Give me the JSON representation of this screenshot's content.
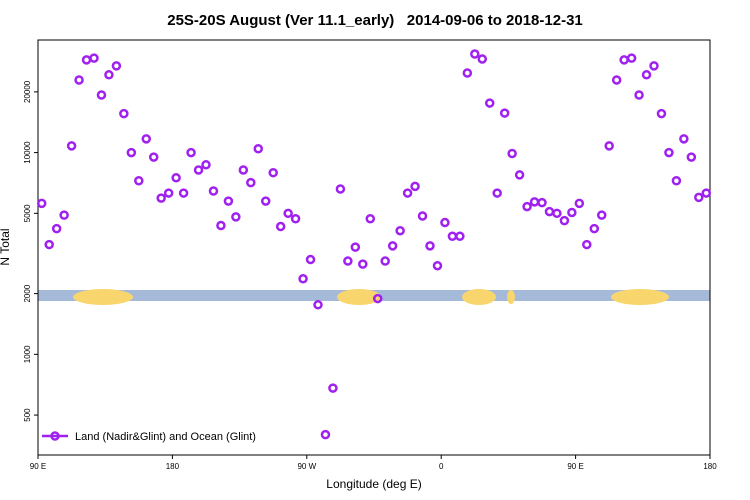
{
  "chart_data": {
    "type": "scatter",
    "title": "25S-20S August (Ver 11.1_early)   2014-09-06 to 2018-12-31",
    "x_label": "Longitude (deg E)",
    "y_label": "N Total",
    "log_y": true,
    "legend": "bottom-left",
    "xlim": [
      90,
      540
    ],
    "xticks": [
      {
        "value": 90,
        "label": "90 E"
      },
      {
        "value": 180,
        "label": "180"
      },
      {
        "value": 270,
        "label": "90 W"
      },
      {
        "value": 360,
        "label": "0"
      },
      {
        "value": 450,
        "label": "90 E"
      },
      {
        "value": 540,
        "label": "180"
      }
    ],
    "ylim": [
      317,
      36150
    ],
    "yticks": [
      500,
      1000,
      2000,
      5000,
      10000,
      20000
    ],
    "series": [
      {
        "name": "Land (Nadir&Glint) and Ocean (Glint)",
        "color": "#a020f0",
        "x": [
          92.5,
          97.5,
          102.5,
          107.5,
          112.5,
          117.5,
          122.5,
          127.5,
          132.5,
          137.5,
          142.5,
          147.5,
          152.5,
          157.5,
          162.5,
          167.5,
          172.5,
          177.5,
          182.5,
          187.5,
          192.5,
          197.5,
          202.5,
          207.5,
          212.5,
          217.5,
          222.5,
          227.5,
          232.5,
          237.5,
          242.5,
          247.5,
          252.5,
          257.5,
          262.5,
          267.5,
          272.5,
          277.5,
          282.5,
          287.5,
          292.5,
          297.5,
          302.5,
          307.5,
          312.5,
          317.5,
          322.5,
          327.5,
          332.5,
          337.5,
          342.5,
          347.5,
          352.5,
          357.5,
          362.5,
          367.5,
          372.5,
          377.5,
          382.5,
          387.5,
          392.5,
          397.5,
          402.5,
          407.5,
          412.5,
          417.5,
          422.5,
          427.5,
          432.5,
          437.5,
          442.5,
          447.5,
          452.5,
          457.5,
          462.5,
          467.5,
          472.5,
          477.5,
          482.5,
          487.5,
          492.5,
          497.5,
          502.5,
          507.5,
          512.5,
          517.5,
          522.5,
          527.5,
          532.5,
          537.5
        ],
        "values": [
          5600,
          3500,
          4200,
          4900,
          10800,
          22900,
          28800,
          29400,
          19300,
          24300,
          26900,
          15600,
          10000,
          7250,
          11700,
          9500,
          5950,
          6300,
          7500,
          6300,
          10000,
          8200,
          8700,
          6450,
          4350,
          5750,
          4800,
          8200,
          7100,
          10450,
          5750,
          7950,
          4300,
          5000,
          4700,
          2370,
          2950,
          1760,
          400,
          680,
          6600,
          2900,
          3400,
          2800,
          4700,
          1890,
          2900,
          3450,
          4100,
          6300,
          6800,
          4850,
          3450,
          2750,
          4500,
          3850,
          3850,
          24800,
          30800,
          29100,
          17600,
          6300,
          15700,
          9900,
          7750,
          5400,
          5700,
          5650,
          5100,
          5000,
          4600,
          5050,
          5600,
          3500,
          4200,
          4900,
          10800,
          22900,
          28800,
          29400,
          19300,
          24300,
          26900,
          15600,
          10000,
          7250,
          11700,
          9500,
          6000,
          6300
        ]
      }
    ]
  }
}
